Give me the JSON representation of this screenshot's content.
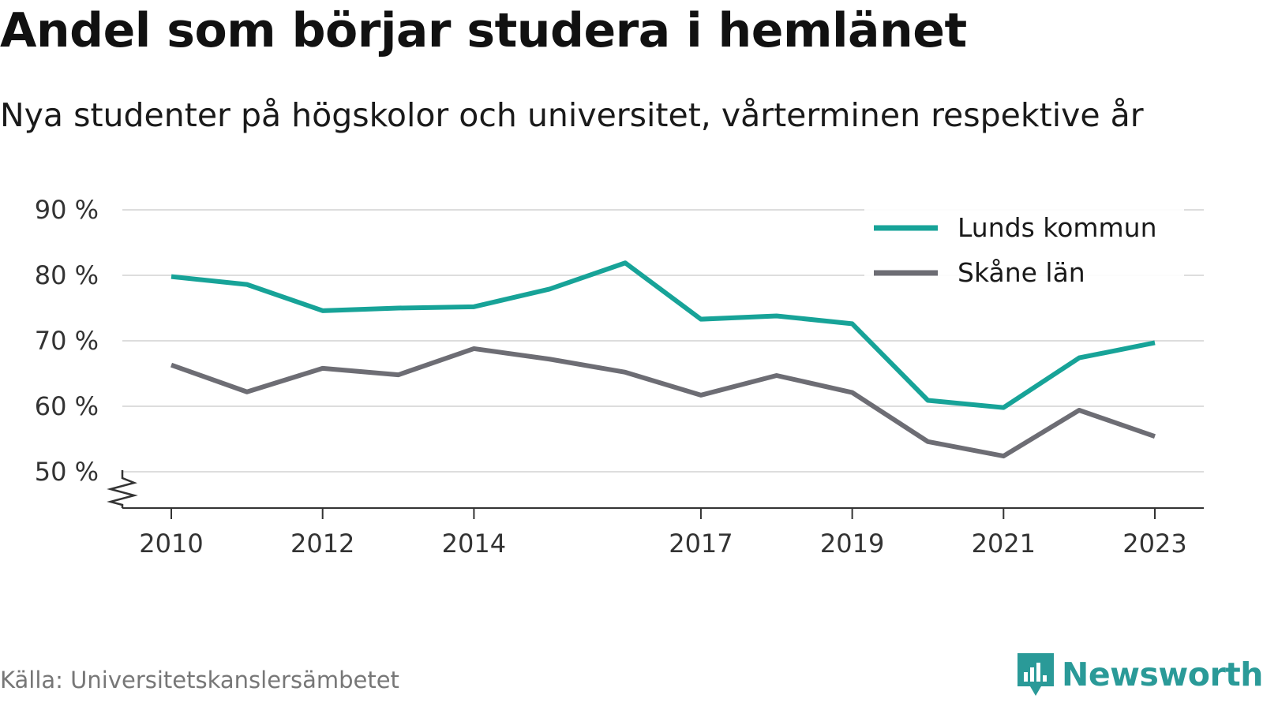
{
  "header": {
    "title": "Andel som börjar studera i hemlänet",
    "subtitle": "Nya studenter på högskolor och universitet, vårterminen respektive år"
  },
  "footer": {
    "source": "Källa: Universitetskanslersämbetet",
    "brand": "Newsworthy",
    "brand_icon": "newsworthy-logo-icon",
    "brand_color": "#2a9a98"
  },
  "chart_data": {
    "type": "line",
    "title": "Andel som börjar studera i hemlänet",
    "subtitle": "Nya studenter på högskolor och universitet, vårterminen respektive år",
    "x": [
      2010,
      2011,
      2012,
      2013,
      2014,
      2015,
      2016,
      2017,
      2018,
      2019,
      2020,
      2021,
      2022,
      2023
    ],
    "x_ticks": [
      2010,
      2012,
      2014,
      2017,
      2019,
      2021,
      2023
    ],
    "y_ticks": [
      50,
      60,
      70,
      80,
      90
    ],
    "y_tick_labels": [
      "50 %",
      "60 %",
      "70 %",
      "80 %",
      "90 %"
    ],
    "ylim": [
      50,
      90
    ],
    "y_axis_break": true,
    "grid": true,
    "legend_position": "top-right",
    "series": [
      {
        "name": "Lunds kommun",
        "color": "#17a398",
        "values": [
          79.8,
          78.6,
          74.6,
          75.0,
          75.2,
          77.9,
          81.9,
          73.3,
          73.8,
          72.6,
          60.9,
          59.8,
          67.4,
          69.7
        ]
      },
      {
        "name": "Skåne län",
        "color": "#6d6d74",
        "values": [
          66.3,
          62.2,
          65.8,
          64.8,
          68.8,
          67.2,
          65.2,
          61.7,
          64.7,
          62.1,
          54.6,
          52.4,
          59.4,
          55.4
        ]
      }
    ]
  }
}
